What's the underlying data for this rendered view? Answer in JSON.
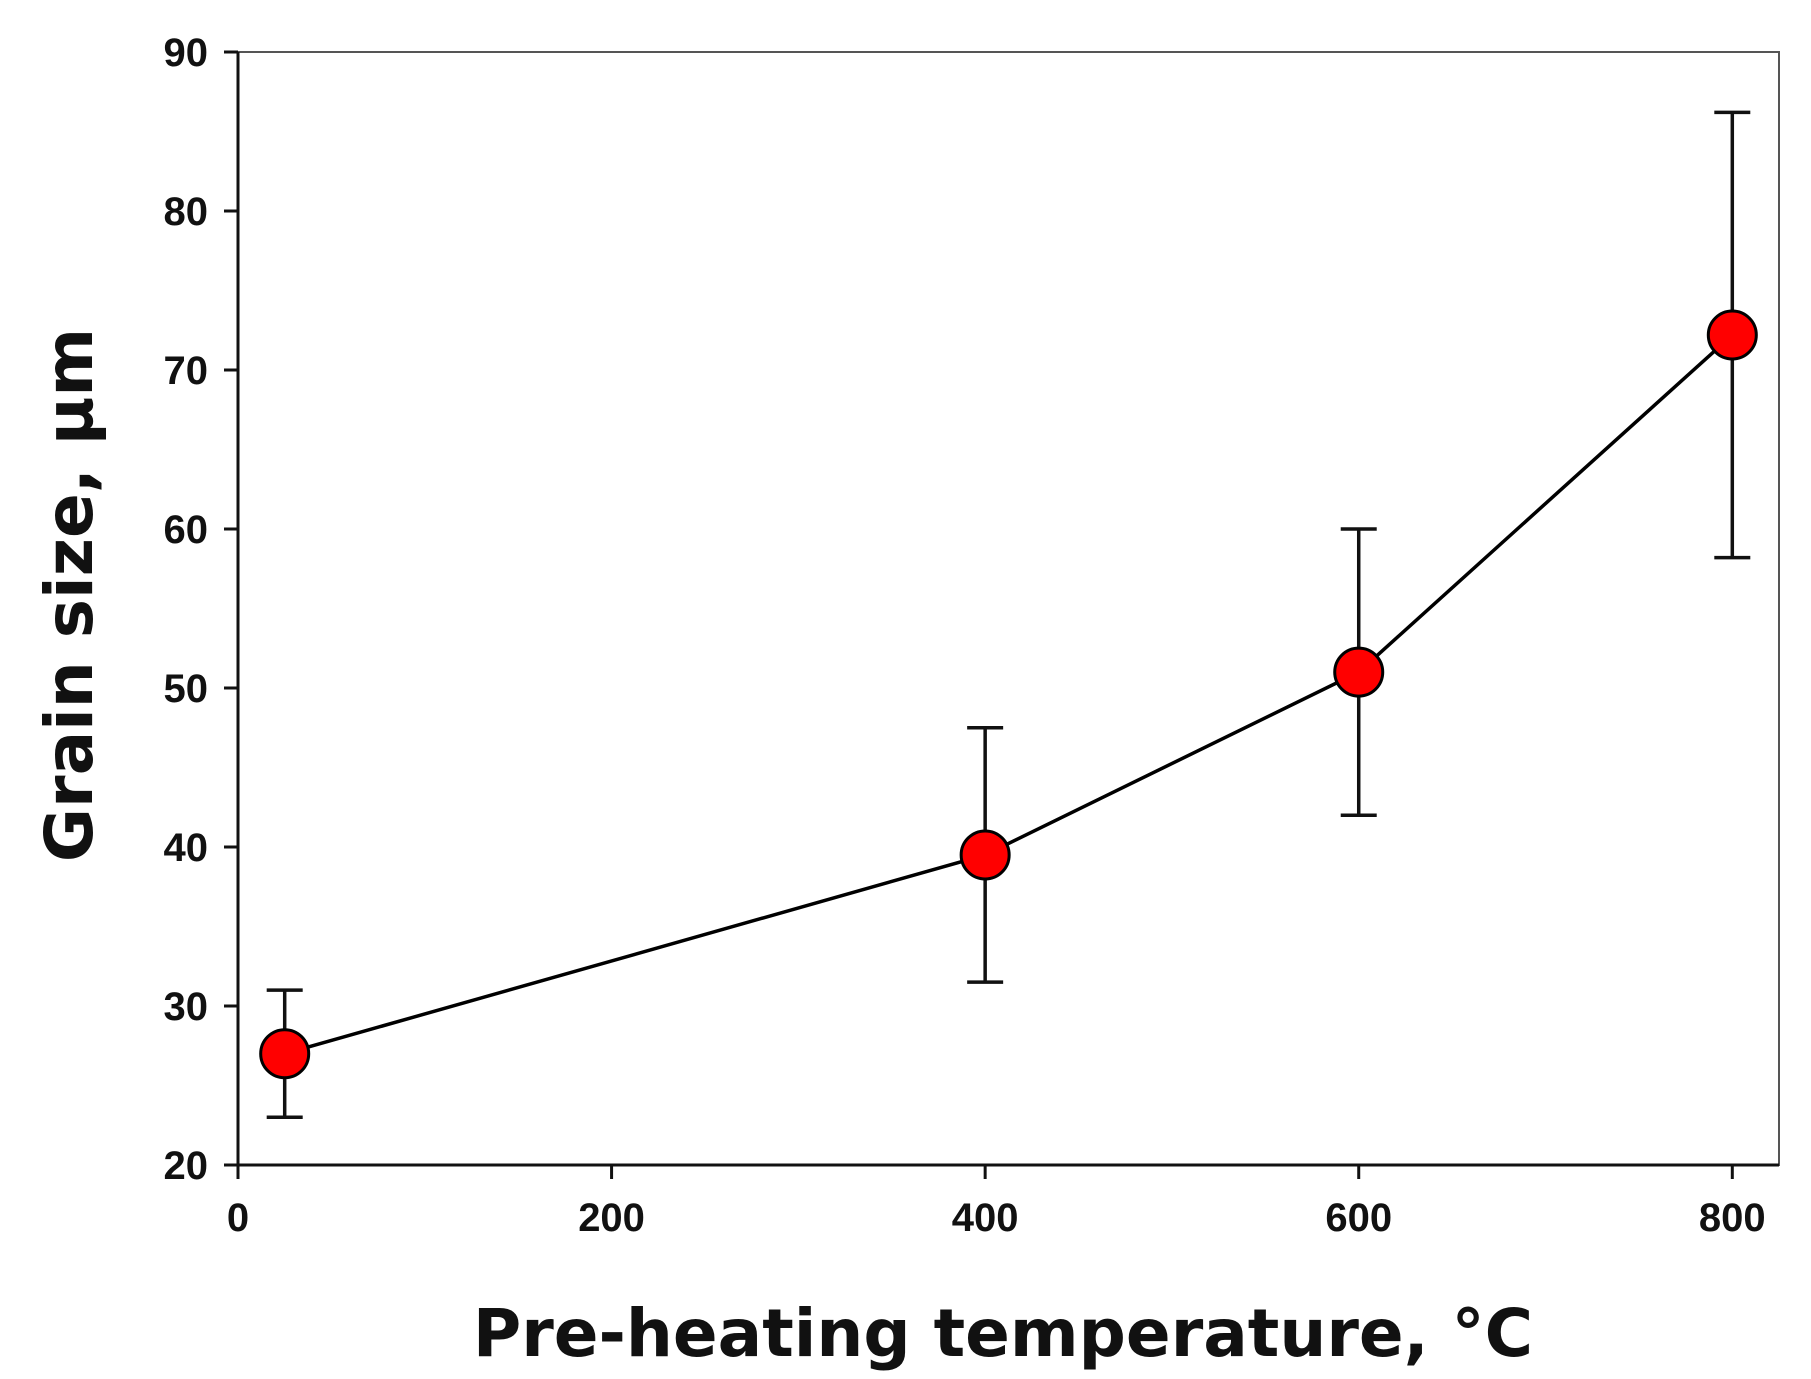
{
  "chart_data": {
    "type": "scatter",
    "title": "",
    "xlabel": "Pre-heating temperature, °C",
    "ylabel": "Grain size, µm",
    "xlim": [
      0,
      825
    ],
    "ylim": [
      20,
      90
    ],
    "xticks": [
      0,
      200,
      400,
      600,
      800
    ],
    "yticks": [
      20,
      30,
      40,
      50,
      60,
      70,
      80,
      90
    ],
    "xtick_labels": [
      "0",
      "200",
      "400",
      "600",
      "800"
    ],
    "ytick_labels": [
      "20",
      "30",
      "40",
      "50",
      "60",
      "70",
      "80",
      "90"
    ],
    "grid": false,
    "legend": "none",
    "series": [
      {
        "name": "Grain size",
        "connected": true,
        "marker": "circle",
        "marker_color": "#ff0000",
        "line_color": "#000000",
        "x": [
          25,
          400,
          600,
          800
        ],
        "y": [
          27,
          39.5,
          51,
          72.2
        ],
        "error_upper": [
          31,
          47.5,
          60,
          86.2
        ],
        "error_lower": [
          23,
          31.5,
          42,
          58.2
        ]
      }
    ]
  }
}
